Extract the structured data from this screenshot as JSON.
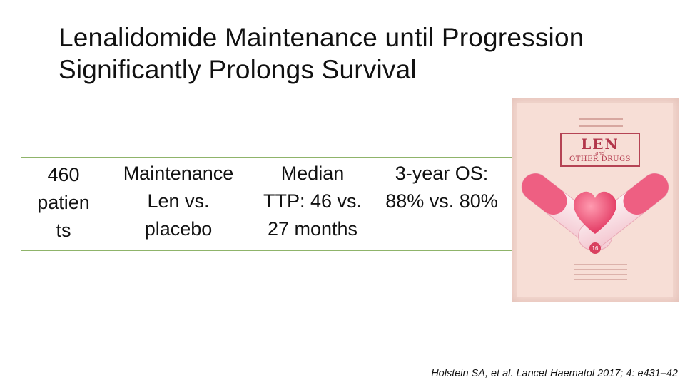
{
  "title": "Lenalidomide Maintenance until Progression Significantly Prolongs Survival",
  "trial_row": {
    "patients": "460\npatien\nts",
    "arms": "Maintenance\nLen vs.\nplacebo",
    "ttp": "Median\nTTP: 46 vs.\n27 months",
    "os": "3-year OS:\n88% vs. 80%"
  },
  "citation": "Holstein SA, et al. Lancet Haematol 2017; 4: e431–42",
  "book_cover": {
    "title_main": "LEN",
    "title_and": "and",
    "title_sub": "OTHER DRUGS",
    "badge": "16",
    "colors": {
      "background": "#f3d7cf",
      "accent": "#b2374b",
      "heart": "#e8456b"
    }
  },
  "colors": {
    "rule": "#8fb46a",
    "text": "#111111"
  }
}
